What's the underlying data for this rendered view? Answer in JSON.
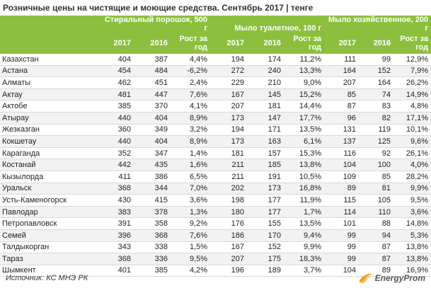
{
  "title": "Розничные цены на чистящие и моющие средства. Сентябрь 2017 | тенге",
  "groups": [
    "Стиральный порошок, 500 г",
    "Мыло туалетное, 100 г",
    "Мыло хозяйственное, 200 г"
  ],
  "subheaders": {
    "y2017": "2017",
    "y2016": "2016",
    "rost_line1": "Рост за",
    "rost_line2": "год"
  },
  "rows": [
    [
      "Казахстан",
      "404",
      "387",
      "4,4%",
      "194",
      "174",
      "11,2%",
      "111",
      "99",
      "12,9%"
    ],
    [
      "Астана",
      "454",
      "484",
      "-6,2%",
      "272",
      "240",
      "13,3%",
      "164",
      "152",
      "7,9%"
    ],
    [
      "Алматы",
      "462",
      "451",
      "2,4%",
      "229",
      "210",
      "9,0%",
      "207",
      "164",
      "26,2%"
    ],
    [
      "Актау",
      "481",
      "447",
      "7,6%",
      "167",
      "145",
      "15,2%",
      "85",
      "74",
      "14,9%"
    ],
    [
      "Актобе",
      "385",
      "370",
      "4,1%",
      "207",
      "181",
      "14,4%",
      "87",
      "83",
      "4,8%"
    ],
    [
      "Атырау",
      "440",
      "404",
      "8,9%",
      "173",
      "147",
      "17,7%",
      "96",
      "82",
      "17,1%"
    ],
    [
      "Жезказган",
      "360",
      "349",
      "3,2%",
      "194",
      "171",
      "13,5%",
      "131",
      "119",
      "10,1%"
    ],
    [
      "Кокшетау",
      "440",
      "404",
      "8,9%",
      "173",
      "163",
      "6,1%",
      "137",
      "125",
      "9,6%"
    ],
    [
      "Караганда",
      "352",
      "347",
      "1,4%",
      "181",
      "157",
      "15,3%",
      "116",
      "92",
      "26,1%"
    ],
    [
      "Костанай",
      "442",
      "435",
      "1,6%",
      "211",
      "185",
      "13,8%",
      "104",
      "100",
      "4,0%"
    ],
    [
      "Кызылорда",
      "411",
      "386",
      "6,5%",
      "211",
      "191",
      "10,5%",
      "109",
      "85",
      "28,2%"
    ],
    [
      "Уральск",
      "368",
      "344",
      "7,0%",
      "202",
      "173",
      "16,8%",
      "89",
      "81",
      "9,9%"
    ],
    [
      "Усть-Каменогорск",
      "430",
      "415",
      "3,6%",
      "198",
      "177",
      "11,9%",
      "115",
      "105",
      "9,5%"
    ],
    [
      "Павлодар",
      "383",
      "378",
      "1,3%",
      "180",
      "177",
      "1,7%",
      "114",
      "110",
      "3,6%"
    ],
    [
      "Петропавловск",
      "391",
      "358",
      "9,2%",
      "176",
      "155",
      "13,5%",
      "101",
      "88",
      "14,8%"
    ],
    [
      "Семей",
      "396",
      "368",
      "7,6%",
      "186",
      "170",
      "9,4%",
      "99",
      "94",
      "5,3%"
    ],
    [
      "Талдыкорган",
      "343",
      "338",
      "1,5%",
      "167",
      "152",
      "9,9%",
      "99",
      "87",
      "13,8%"
    ],
    [
      "Тараз",
      "368",
      "336",
      "9,5%",
      "207",
      "175",
      "18,3%",
      "99",
      "87",
      "13,8%"
    ],
    [
      "Шымкент",
      "401",
      "385",
      "4,2%",
      "196",
      "189",
      "3,7%",
      "104",
      "89",
      "16,9%"
    ]
  ],
  "source": "Источник: КС МНЭ РК",
  "brand": "EnergyProm",
  "colors": {
    "header_bg": "#8dbf3f",
    "header_text": "#ffffff",
    "stripe": "#f2f2f2",
    "logo_accent": "#f29c1f"
  }
}
